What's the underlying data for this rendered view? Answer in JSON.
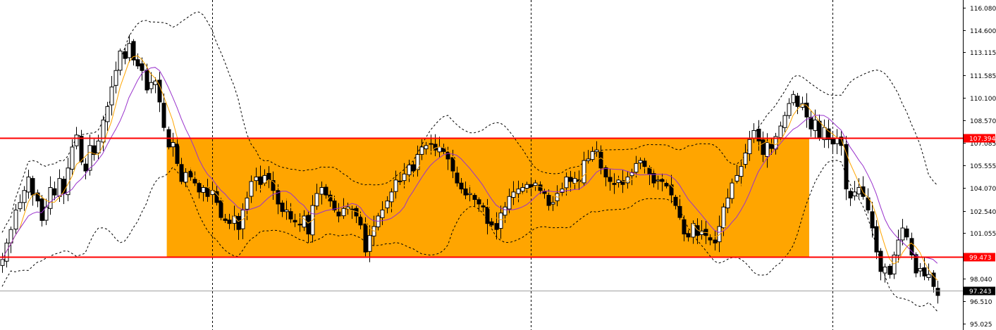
{
  "colors": {
    "background": "#ffffff",
    "zone_fill": "#ffa500",
    "level_line": "#ff0000",
    "candle": "#000000",
    "ma_fast": "#ffa500",
    "ma_slow": "#9932cc",
    "bands": "#000000",
    "current_price_tag": "#000000",
    "level_tag": "#ff0000"
  },
  "chart_data": {
    "type": "candlestick",
    "ylim": [
      94.6,
      116.6
    ],
    "grid": false,
    "price_axis": {
      "ticks": [
        "116.080",
        "114.600",
        "113.115",
        "111.585",
        "110.100",
        "108.570",
        "107.085",
        "105.555",
        "104.070",
        "102.540",
        "101.055",
        "98.040",
        "96.510",
        "95.025"
      ]
    },
    "levels": [
      {
        "label": "107.394",
        "value": 107.394
      },
      {
        "label": "99.473",
        "value": 99.473
      }
    ],
    "current_price": {
      "label": "97.243",
      "value": 97.243
    },
    "zone": {
      "from_index": 38,
      "to_index": 185,
      "low": 99.473,
      "high": 107.394
    },
    "period_separators": [
      48,
      121,
      190
    ],
    "closes": [
      99.3,
      100.4,
      101.3,
      102.6,
      103.1,
      103.9,
      104.8,
      103.6,
      103.2,
      101.9,
      102.8,
      104.1,
      103.6,
      104.7,
      103.7,
      105.4,
      106.8,
      107.6,
      105.8,
      105.2,
      106.9,
      106.3,
      107.2,
      108.6,
      109.5,
      110.8,
      111.9,
      113.2,
      112.7,
      113.7,
      112.6,
      112.2,
      111.9,
      110.6,
      111.1,
      111.2,
      109.8,
      108.1,
      106.8,
      107.1,
      105.7,
      104.5,
      105.1,
      104.8,
      104.4,
      103.8,
      104.1,
      103.5,
      103.9,
      103.1,
      102.1,
      101.9,
      101.7,
      102.2,
      101.3,
      102.6,
      103.4,
      104.5,
      104.8,
      104.3,
      104.9,
      104.6,
      103.9,
      103.0,
      102.5,
      102.6,
      102.0,
      101.8,
      101.6,
      102.2,
      101.0,
      102.9,
      103.7,
      104.1,
      103.6,
      103.2,
      102.6,
      102.2,
      102.7,
      102.8,
      102.6,
      102.2,
      101.6,
      99.8,
      100.9,
      101.5,
      102.2,
      102.6,
      103.2,
      103.8,
      104.6,
      104.5,
      105.0,
      105.6,
      105.2,
      106.3,
      106.8,
      106.9,
      107.0,
      106.6,
      106.8,
      106.5,
      106.0,
      105.2,
      104.4,
      104.0,
      103.6,
      103.7,
      103.3,
      103.0,
      102.8,
      101.7,
      101.6,
      101.3,
      102.4,
      102.8,
      103.5,
      103.8,
      104.0,
      104.1,
      104.3,
      104.1,
      104.4,
      103.9,
      103.7,
      102.9,
      103.1,
      103.7,
      104.0,
      104.8,
      104.5,
      104.7,
      104.5,
      105.9,
      106.0,
      106.5,
      106.6,
      105.4,
      104.8,
      104.5,
      104.3,
      104.6,
      104.3,
      104.8,
      105.1,
      105.7,
      105.9,
      105.5,
      105.0,
      104.4,
      104.6,
      104.5,
      104.2,
      103.6,
      102.9,
      102.1,
      101.0,
      100.8,
      101.7,
      100.9,
      101.2,
      100.9,
      100.6,
      100.4,
      101.5,
      102.8,
      103.4,
      104.4,
      104.9,
      105.5,
      106.4,
      107.3,
      107.9,
      107.2,
      106.3,
      107.1,
      106.7,
      107.5,
      108.2,
      108.9,
      109.7,
      110.3,
      109.5,
      109.7,
      108.8,
      108.0,
      108.6,
      107.4,
      108.1,
      107.3,
      107.0,
      107.4,
      106.9,
      104.0,
      103.4,
      103.8,
      104.1,
      103.5,
      102.6,
      101.4,
      99.8,
      98.5,
      98.8,
      98.3,
      99.6,
      100.6,
      101.4,
      100.8,
      99.6,
      98.4,
      98.7,
      98.2,
      98.3,
      97.5,
      96.9
    ]
  }
}
